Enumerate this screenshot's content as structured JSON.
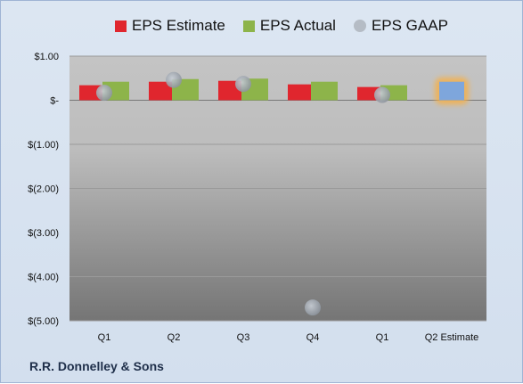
{
  "chart_data": {
    "type": "bar",
    "categories": [
      "Q1",
      "Q2",
      "Q3",
      "Q4",
      "Q1",
      "Q2 Estimate"
    ],
    "ylim": [
      -5,
      1
    ],
    "y_ticks": [
      1,
      0,
      -1,
      -2,
      -3,
      -4,
      -5
    ],
    "y_tick_labels": [
      "$1.00",
      "$-",
      "$(1.00)",
      "$(2.00)",
      "$(3.00)",
      "$(4.00)",
      "$(5.00)"
    ],
    "grid": true,
    "legend_position": "top",
    "series": [
      {
        "name": "EPS Estimate",
        "kind": "bar",
        "color": "#e0262e",
        "values": [
          0.34,
          0.42,
          0.44,
          0.36,
          0.3,
          null
        ]
      },
      {
        "name": "EPS Actual",
        "kind": "bar",
        "color": "#8db44a",
        "values": [
          0.42,
          0.48,
          0.49,
          0.42,
          0.34,
          null
        ]
      },
      {
        "name": "EPS GAAP",
        "kind": "scatter",
        "color": "#a6aeb8",
        "values": [
          0.17,
          0.46,
          0.37,
          -4.7,
          0.12,
          null
        ]
      }
    ],
    "estimate": {
      "category": "Q2 Estimate",
      "value": 0.42,
      "color": "#7ea6dc",
      "glow": "#f5b04a"
    }
  },
  "company": "R.R. Donnelley & Sons"
}
